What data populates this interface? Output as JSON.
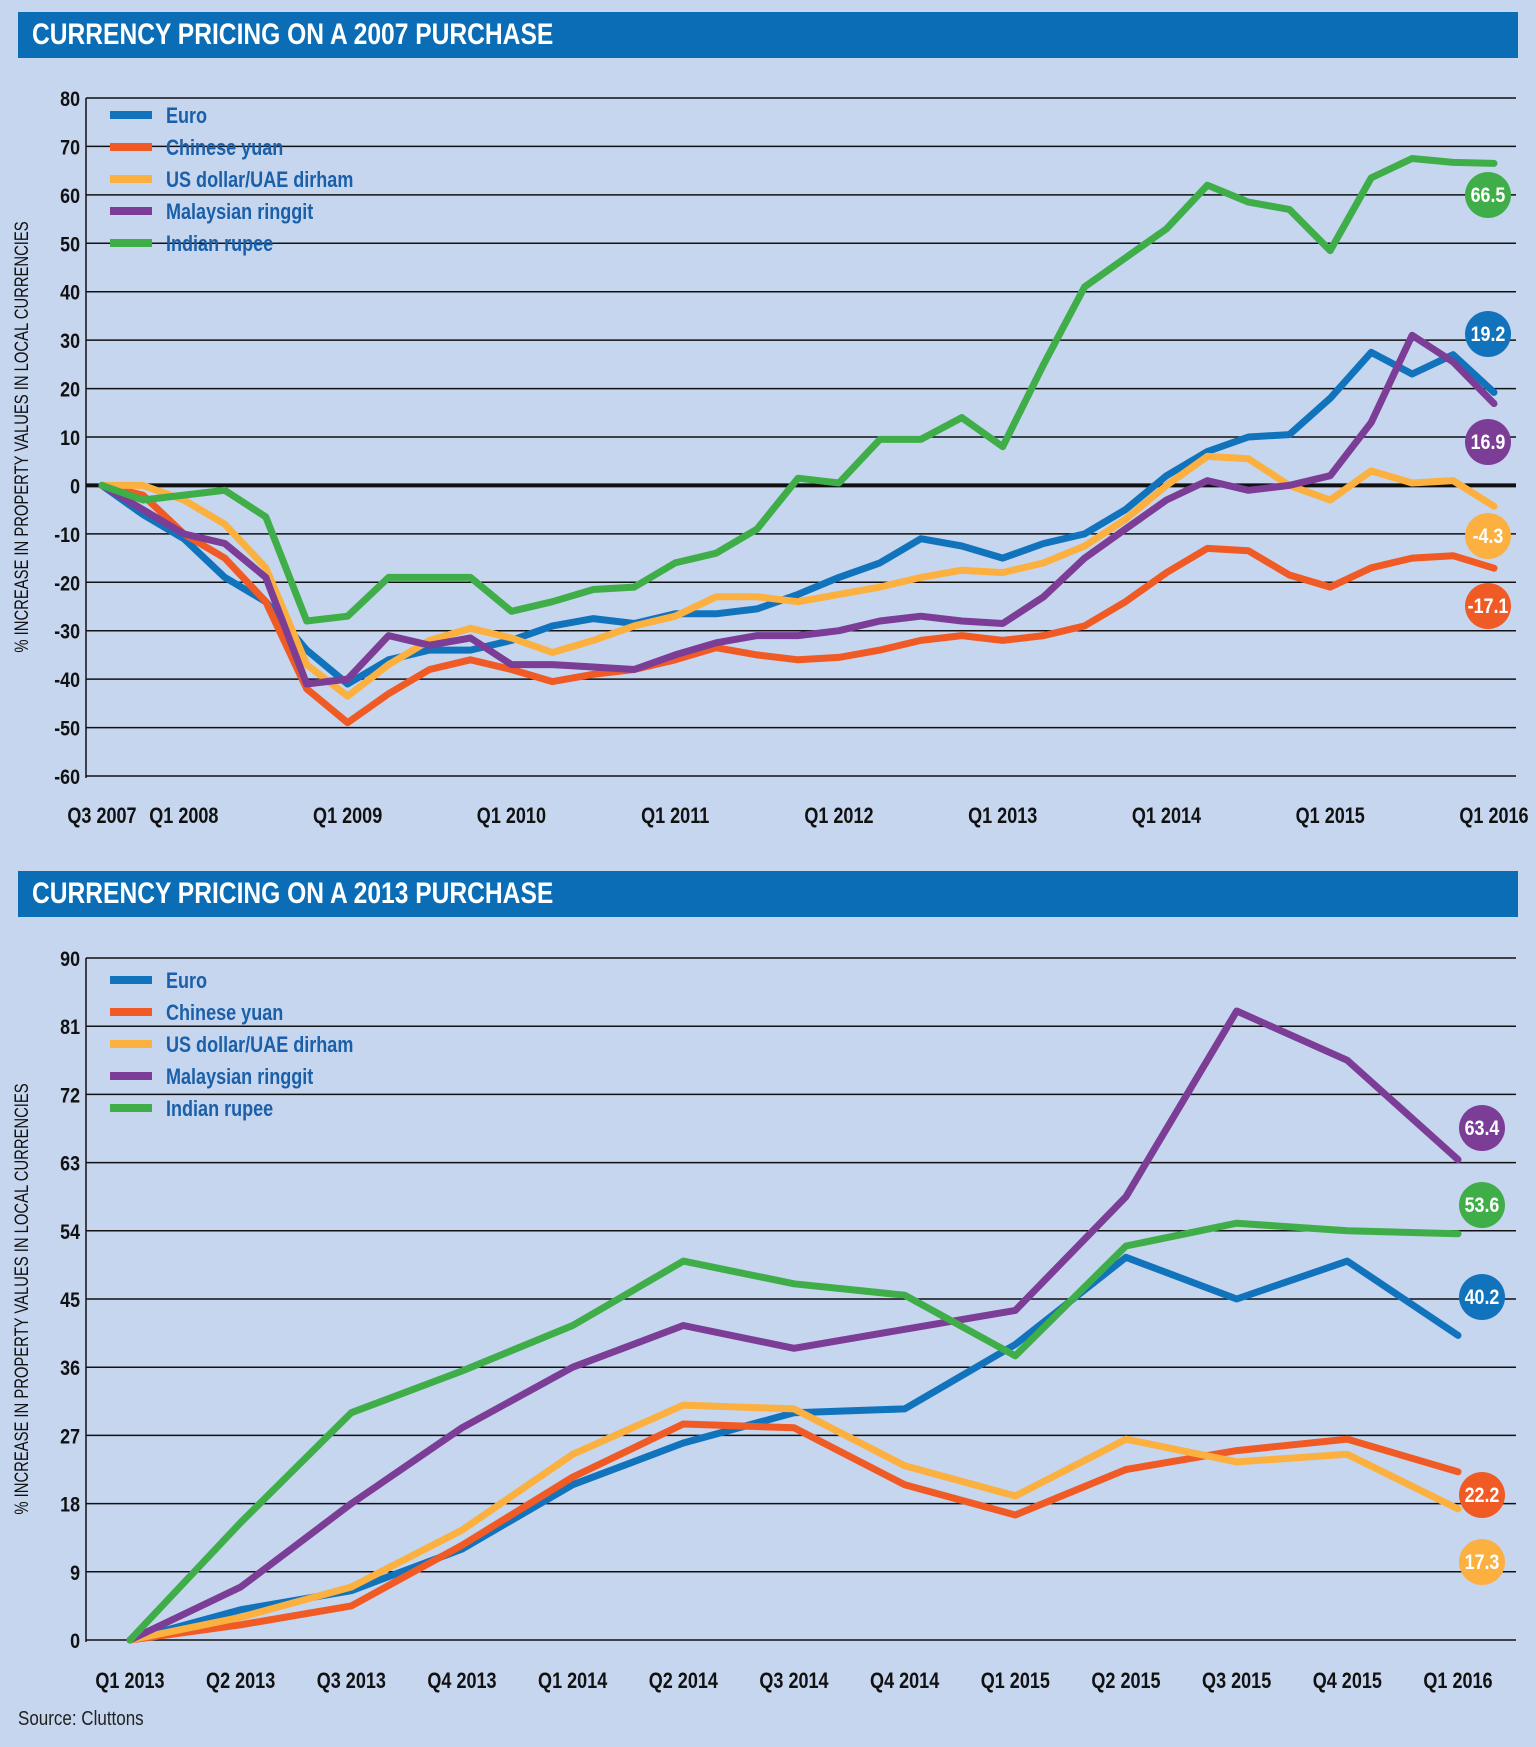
{
  "source": "Source: Cluttons",
  "chart_data": [
    {
      "type": "line",
      "title": "CURRENCY PRICING ON A 2007 PURCHASE",
      "ylabel": "% INCREASE IN PROPERTY VALUES IN LOCAL CURRENCIES",
      "ylim": [
        -60,
        80
      ],
      "yticks": [
        80,
        70,
        60,
        50,
        40,
        30,
        20,
        10,
        0,
        -10,
        -20,
        -30,
        -40,
        -50,
        -60
      ],
      "x_tick_labels": [
        {
          "label": "Q3 2007",
          "i": 0
        },
        {
          "label": "Q1 2008",
          "i": 2
        },
        {
          "label": "Q1 2009",
          "i": 6
        },
        {
          "label": "Q1 2010",
          "i": 10
        },
        {
          "label": "Q1 2011",
          "i": 14
        },
        {
          "label": "Q1 2012",
          "i": 18
        },
        {
          "label": "Q1 2013",
          "i": 22
        },
        {
          "label": "Q1 2014",
          "i": 26
        },
        {
          "label": "Q1 2015",
          "i": 30
        },
        {
          "label": "Q1 2016",
          "i": 34
        }
      ],
      "legend_position": "top-left",
      "series": [
        {
          "name": "Euro",
          "color": "#1273bd",
          "end_label": "19.2",
          "values": [
            0,
            -6,
            -11,
            -19,
            -24,
            -34,
            -41,
            -36,
            -34,
            -34,
            -32,
            -29,
            -27.5,
            -28.5,
            -26.5,
            -26.5,
            -25.5,
            -22.5,
            -19,
            -16,
            -11,
            -12.5,
            -15,
            -12,
            -10,
            -5,
            2,
            7,
            10,
            10.5,
            18,
            27.5,
            23,
            27,
            19.2
          ]
        },
        {
          "name": "Chinese yuan",
          "color": "#f05a24",
          "end_label": "-17.1",
          "values": [
            0,
            -2,
            -10,
            -15,
            -24,
            -42,
            -49,
            -43,
            -38,
            -36,
            -38,
            -40.5,
            -39,
            -38,
            -36,
            -33.5,
            -35,
            -36,
            -35.5,
            -34,
            -32,
            -31,
            -32,
            -31,
            -29,
            -24,
            -18,
            -13,
            -13.5,
            -18.5,
            -21,
            -17,
            -15,
            -14.5,
            -17.1
          ]
        },
        {
          "name": "US dollar/UAE dirham",
          "color": "#fbb040",
          "end_label": "-4.3",
          "values": [
            0,
            0,
            -3,
            -8,
            -17,
            -37,
            -43.5,
            -37,
            -32,
            -29.5,
            -31.5,
            -34.5,
            -32,
            -29,
            -27,
            -23,
            -23,
            -24,
            -22.5,
            -21,
            -19,
            -17.5,
            -18,
            -16,
            -12.5,
            -7,
            0,
            6,
            5.5,
            0,
            -3,
            3,
            0.5,
            1,
            -4.3
          ]
        },
        {
          "name": "Malaysian ringgit",
          "color": "#7c3d96",
          "end_label": "16.9",
          "values": [
            0,
            -5,
            -10,
            -12,
            -19,
            -41,
            -40,
            -31,
            -33,
            -31.5,
            -37,
            -37,
            -37.5,
            -38,
            -35,
            -32.5,
            -31,
            -31,
            -30,
            -28,
            -27,
            -28,
            -28.5,
            -23,
            -15,
            -9,
            -3,
            1,
            -1,
            0,
            2,
            13,
            31,
            25.5,
            16.9
          ]
        },
        {
          "name": "Indian rupee",
          "color": "#3fae49",
          "end_label": "66.5",
          "values": [
            0,
            -3,
            -2,
            -1,
            -6.5,
            -28,
            -27,
            -19,
            -19,
            -19,
            -26,
            -24,
            -21.5,
            -21,
            -16,
            -14,
            -9,
            1.5,
            0.5,
            9.5,
            9.5,
            14,
            8,
            25,
            41,
            47,
            53,
            62,
            58.5,
            57,
            48.5,
            63.5,
            67.5,
            66.7,
            66.5
          ]
        }
      ]
    },
    {
      "type": "line",
      "title": "CURRENCY PRICING ON A 2013 PURCHASE",
      "ylabel": "% INCREASE IN PROPERTY VALUES IN LOCAL CURRENCIES",
      "ylim": [
        0,
        90
      ],
      "yticks": [
        90,
        81,
        72,
        63,
        54,
        45,
        36,
        27,
        18,
        9,
        0
      ],
      "categories": [
        "Q1 2013",
        "Q2 2013",
        "Q3 2013",
        "Q4 2013",
        "Q1 2014",
        "Q2 2014",
        "Q3 2014",
        "Q4 2014",
        "Q1 2015",
        "Q2 2015",
        "Q3 2015",
        "Q4 2015",
        "Q1 2016"
      ],
      "legend_position": "top-left",
      "series": [
        {
          "name": "Euro",
          "color": "#1273bd",
          "end_label": "40.2",
          "values": [
            0,
            4,
            6.5,
            12,
            20.5,
            26,
            30,
            30.5,
            39,
            50.5,
            45,
            50,
            40.2
          ]
        },
        {
          "name": "Chinese yuan",
          "color": "#f05a24",
          "end_label": "22.2",
          "values": [
            0,
            2,
            4.5,
            12.5,
            21.5,
            28.5,
            28,
            20.5,
            16.5,
            22.5,
            25,
            26.5,
            22.2
          ]
        },
        {
          "name": "US dollar/UAE dirham",
          "color": "#fbb040",
          "end_label": "17.3",
          "values": [
            0,
            3,
            7,
            14.5,
            24.5,
            31,
            30.5,
            23,
            19,
            26.5,
            23.5,
            24.5,
            17.3
          ]
        },
        {
          "name": "Malaysian ringgit",
          "color": "#7c3d96",
          "end_label": "63.4",
          "values": [
            0,
            7,
            18,
            28,
            36,
            41.5,
            38.5,
            41,
            43.5,
            58.5,
            83,
            76.5,
            63.4
          ]
        },
        {
          "name": "Indian rupee",
          "color": "#3fae49",
          "end_label": "53.6",
          "values": [
            0,
            15.5,
            30,
            35.5,
            41.5,
            50,
            47,
            45.5,
            37.5,
            52,
            55,
            54,
            53.6
          ]
        }
      ]
    }
  ]
}
